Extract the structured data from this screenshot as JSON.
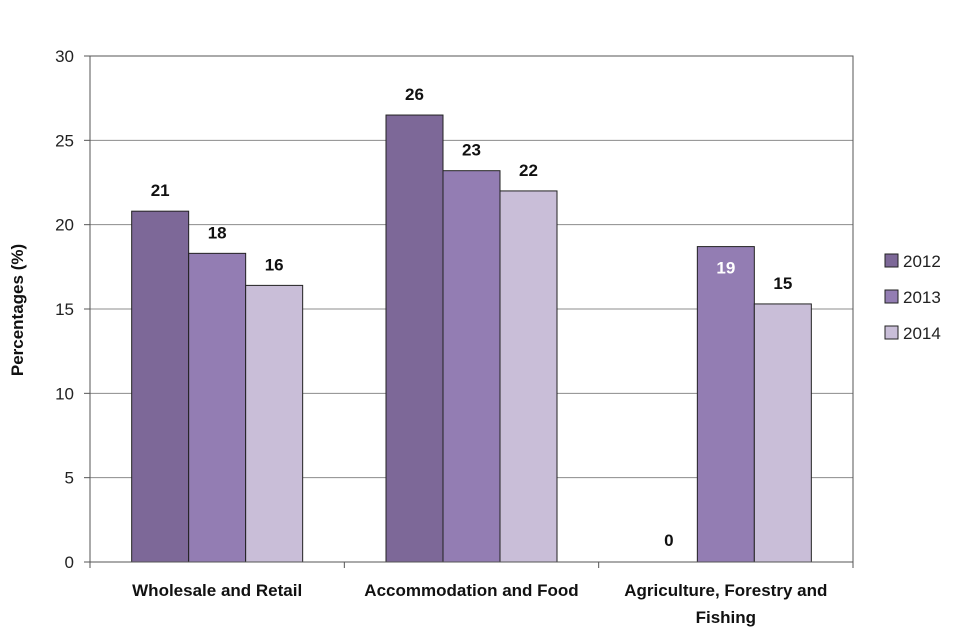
{
  "chart_data": {
    "type": "bar",
    "title": "",
    "xlabel": "",
    "ylabel": "Percentages (%)",
    "ylim": [
      0,
      30
    ],
    "ystep": 5,
    "grid": true,
    "legend_position": "right",
    "categories": [
      [
        "Wholesale and Retail"
      ],
      [
        "Accommodation and Food"
      ],
      [
        "Agriculture, Forestry and",
        "Fishing"
      ]
    ],
    "series": [
      {
        "name": "2012",
        "color": "#7d6898",
        "values": [
          20.8,
          26.5,
          0
        ],
        "labels": [
          "21",
          "26",
          "0"
        ]
      },
      {
        "name": "2013",
        "color": "#937db3",
        "values": [
          18.3,
          23.2,
          18.7
        ],
        "labels": [
          "18",
          "23",
          "19"
        ]
      },
      {
        "name": "2014",
        "color": "#c9bed8",
        "values": [
          16.4,
          22.0,
          15.3
        ],
        "labels": [
          "16",
          "22",
          "15"
        ]
      }
    ],
    "label_colors": {
      "default": "#111111",
      "inside": "#ffffff"
    }
  }
}
